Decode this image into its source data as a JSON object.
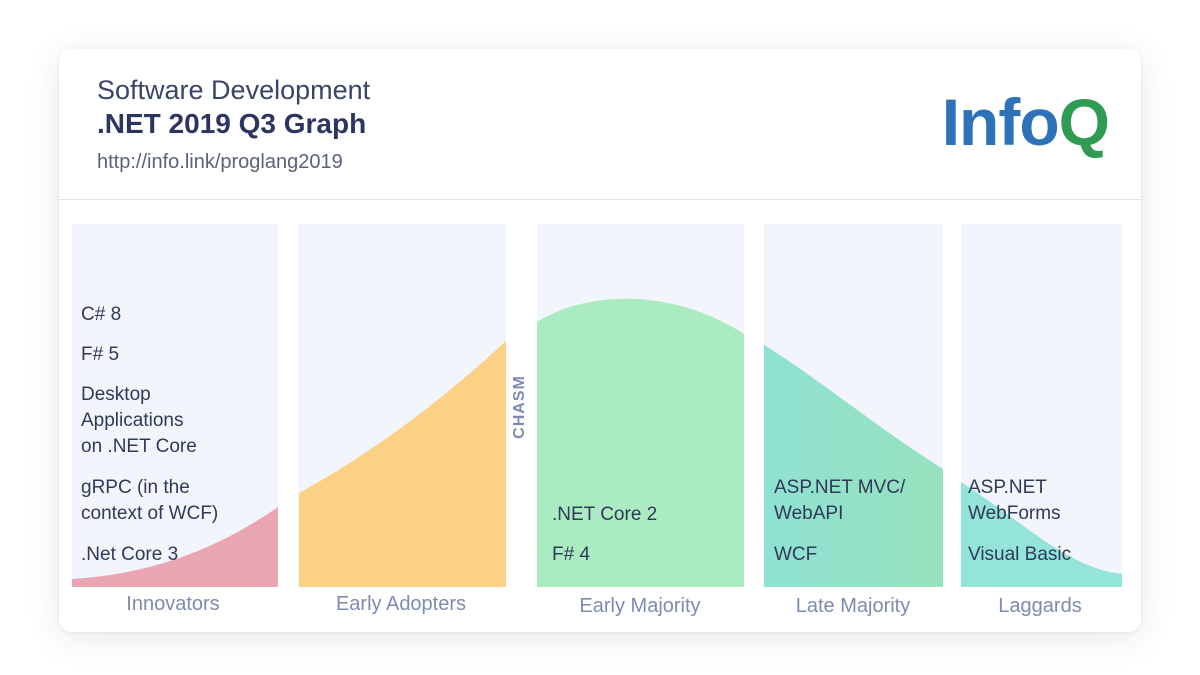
{
  "header": {
    "subtitle": "Software Development",
    "title": ".NET 2019 Q3 Graph",
    "url": "http://info.link/proglang2019"
  },
  "logo": {
    "text_info": "Info",
    "text_q": "Q"
  },
  "columns": [
    {
      "label": "Innovators",
      "items": [
        "C# 8",
        "F# 5",
        "Desktop\nApplications\non .NET Core",
        "gRPC (in the\ncontext of WCF)",
        ".Net Core 3"
      ]
    },
    {
      "label": "Early Adopters",
      "items": []
    },
    {
      "label": "Early Majority",
      "items": [
        ".NET Core 2",
        "F# 4"
      ]
    },
    {
      "label": "Late Majority",
      "items": [
        "ASP.NET MVC/\nWebAPI",
        "WCF"
      ]
    },
    {
      "label": "Laggards",
      "items": [
        "ASP.NET\nWebForms",
        "Visual Basic"
      ]
    }
  ],
  "chasm_label": "CHASM",
  "colors": {
    "panel": "#f2f5fc",
    "innovators": "#e9a5b1",
    "early_adopters": "#fbd185",
    "early_majority": "#abebc2",
    "late_majority_start": "#8fe1d2",
    "late_majority_end": "#97e2bd",
    "laggards": "#94e4d9"
  }
}
